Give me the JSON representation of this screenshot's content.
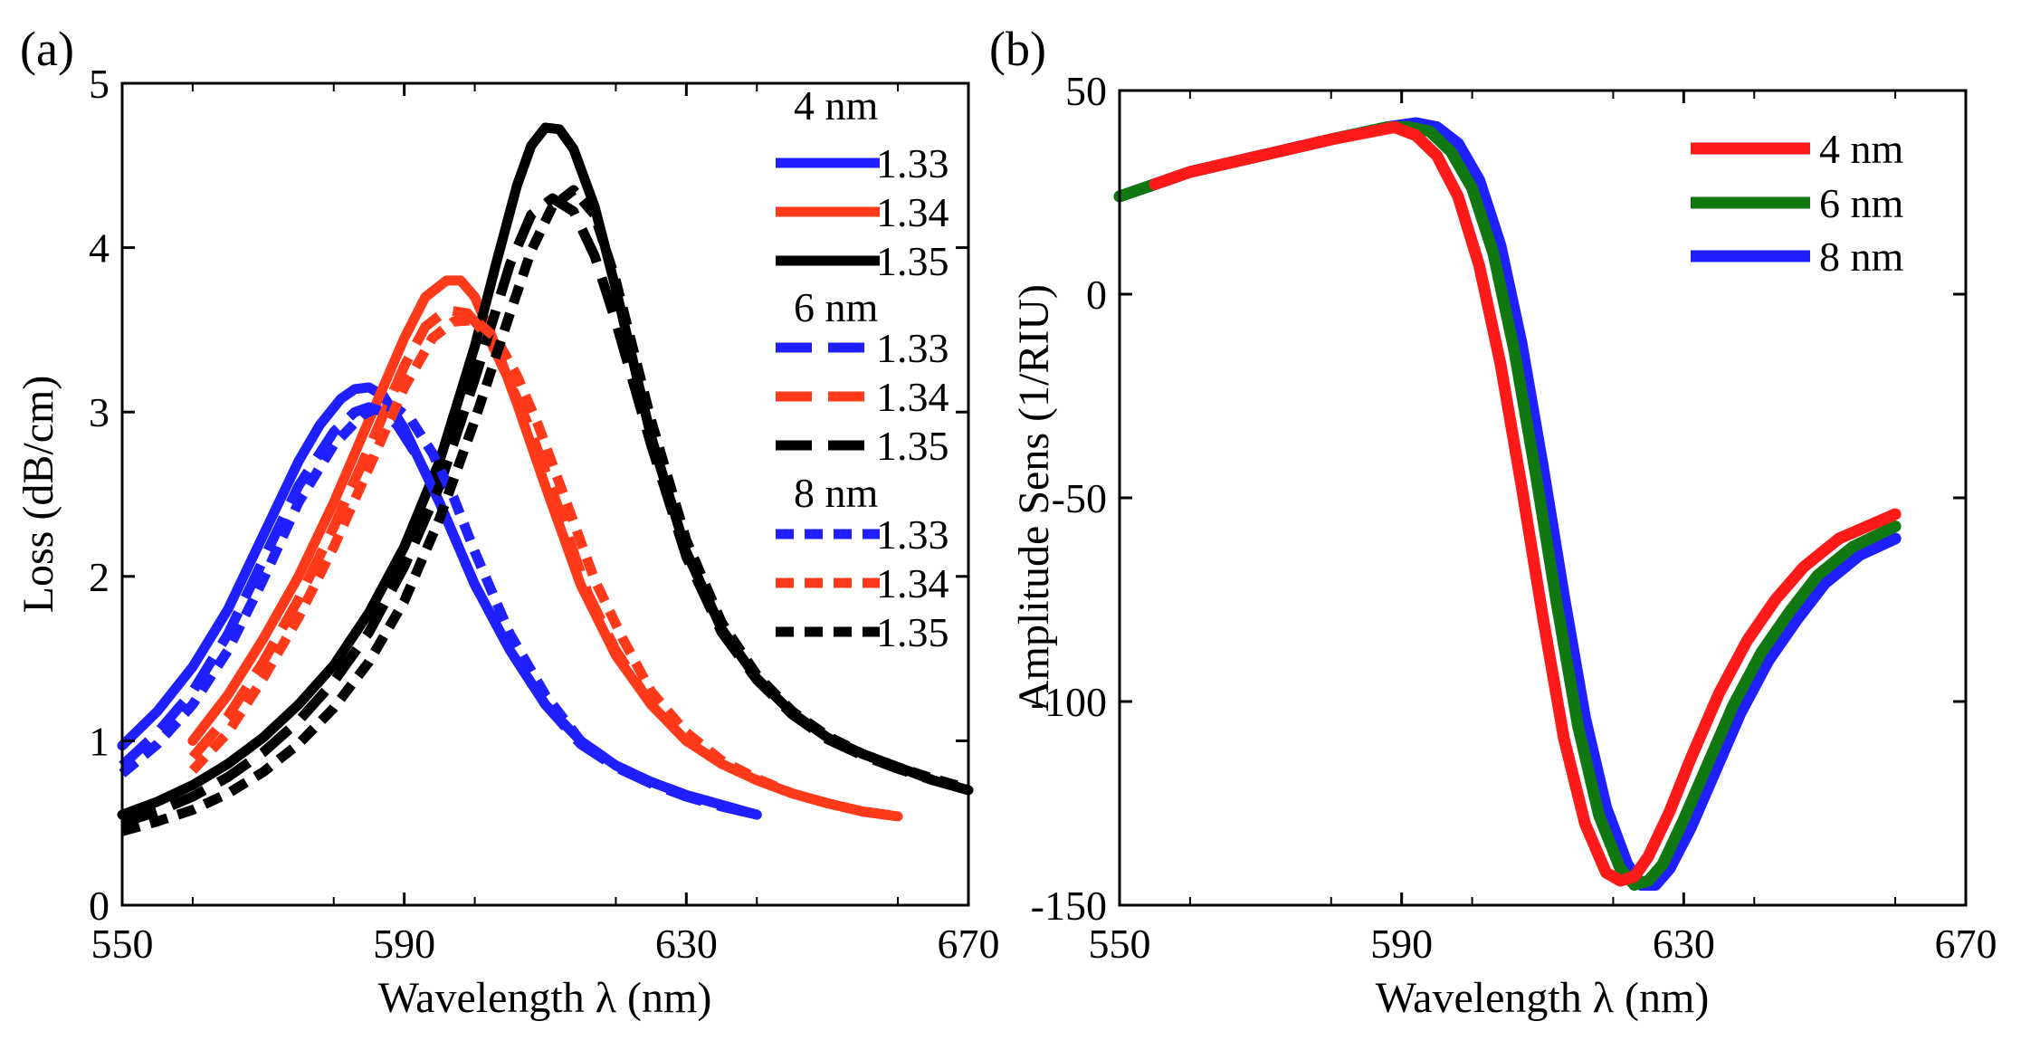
{
  "chart_data": [
    {
      "type": "line",
      "panel_label": "(a)",
      "xlabel": "Wavelength λ (nm)",
      "ylabel": "Loss (dB/cm)",
      "xlim": [
        550,
        670
      ],
      "ylim": [
        0,
        5
      ],
      "xticks": [
        550,
        590,
        630,
        670
      ],
      "yticks": [
        0,
        1,
        2,
        3,
        4,
        5
      ],
      "legend_position": "top-right",
      "legend_groups": [
        {
          "title": "4 nm",
          "style": "solid",
          "entries": [
            "1.33",
            "1.34",
            "1.35"
          ]
        },
        {
          "title": "6 nm",
          "style": "dashed",
          "entries": [
            "1.33",
            "1.34",
            "1.35"
          ]
        },
        {
          "title": "8 nm",
          "style": "dotted",
          "entries": [
            "1.33",
            "1.34",
            "1.35"
          ]
        }
      ],
      "series_colors": {
        "1.33": "#1f1fff",
        "1.34": "#ff3a1a",
        "1.35": "#000000"
      },
      "series": [
        {
          "name": "4 nm 1.33",
          "thickness": "4 nm",
          "index": "1.33",
          "style": "solid",
          "x": [
            550,
            555,
            560,
            565,
            570,
            575,
            578,
            581,
            583,
            585,
            587,
            590,
            595,
            600,
            605,
            610,
            615,
            620,
            625,
            630,
            635,
            640
          ],
          "y": [
            0.97,
            1.18,
            1.45,
            1.8,
            2.25,
            2.7,
            2.92,
            3.08,
            3.14,
            3.15,
            3.1,
            2.9,
            2.45,
            1.95,
            1.55,
            1.22,
            1.0,
            0.85,
            0.75,
            0.67,
            0.61,
            0.55
          ]
        },
        {
          "name": "4 nm 1.34",
          "thickness": "4 nm",
          "index": "1.34",
          "style": "solid",
          "x": [
            560,
            565,
            570,
            575,
            580,
            585,
            590,
            593,
            596,
            598,
            600,
            603,
            606,
            610,
            615,
            620,
            625,
            630,
            635,
            640,
            645,
            650,
            655,
            660
          ],
          "y": [
            1.0,
            1.28,
            1.62,
            2.0,
            2.45,
            2.95,
            3.45,
            3.7,
            3.8,
            3.8,
            3.7,
            3.4,
            3.05,
            2.55,
            1.95,
            1.52,
            1.22,
            1.0,
            0.86,
            0.76,
            0.68,
            0.62,
            0.57,
            0.54
          ]
        },
        {
          "name": "4 nm 1.35",
          "thickness": "4 nm",
          "index": "1.35",
          "style": "solid",
          "x": [
            550,
            555,
            560,
            565,
            570,
            575,
            580,
            585,
            590,
            595,
            600,
            603,
            606,
            608,
            610,
            612,
            614,
            617,
            620,
            625,
            630,
            635,
            640,
            645,
            650,
            655,
            660,
            665,
            670
          ],
          "y": [
            0.55,
            0.63,
            0.73,
            0.86,
            1.02,
            1.22,
            1.46,
            1.78,
            2.18,
            2.7,
            3.4,
            3.9,
            4.38,
            4.62,
            4.73,
            4.72,
            4.6,
            4.25,
            3.75,
            2.85,
            2.15,
            1.68,
            1.38,
            1.17,
            1.02,
            0.92,
            0.84,
            0.76,
            0.7
          ]
        },
        {
          "name": "6 nm 1.33",
          "thickness": "6 nm",
          "index": "1.33",
          "style": "dashed",
          "x": [
            550,
            555,
            560,
            565,
            570,
            575,
            580,
            583,
            585,
            587,
            589,
            592,
            595,
            600,
            605,
            610,
            615,
            620,
            625,
            630,
            635,
            640
          ],
          "y": [
            0.85,
            1.05,
            1.3,
            1.65,
            2.1,
            2.55,
            2.88,
            3.0,
            3.03,
            3.0,
            2.92,
            2.72,
            2.45,
            1.95,
            1.55,
            1.22,
            0.98,
            0.84,
            0.74,
            0.66,
            0.6,
            0.55
          ]
        },
        {
          "name": "6 nm 1.34",
          "thickness": "6 nm",
          "index": "1.34",
          "style": "dashed",
          "x": [
            560,
            565,
            570,
            575,
            580,
            585,
            590,
            593,
            596,
            599,
            602,
            605,
            608,
            612,
            616,
            620,
            625,
            630,
            635,
            640,
            645,
            650,
            655,
            660
          ],
          "y": [
            0.9,
            1.15,
            1.48,
            1.86,
            2.3,
            2.78,
            3.28,
            3.52,
            3.62,
            3.6,
            3.45,
            3.18,
            2.88,
            2.4,
            1.9,
            1.55,
            1.22,
            1.0,
            0.86,
            0.76,
            0.68,
            0.62,
            0.57,
            0.54
          ]
        },
        {
          "name": "6 nm 1.35",
          "thickness": "6 nm",
          "index": "1.35",
          "style": "dashed",
          "x": [
            550,
            555,
            560,
            565,
            570,
            575,
            580,
            585,
            590,
            595,
            600,
            605,
            608,
            611,
            614,
            617,
            620,
            625,
            630,
            635,
            640,
            645,
            650,
            655,
            660,
            665,
            670
          ],
          "y": [
            0.5,
            0.57,
            0.66,
            0.78,
            0.93,
            1.12,
            1.36,
            1.66,
            2.06,
            2.55,
            3.2,
            3.9,
            4.2,
            4.3,
            4.22,
            3.95,
            3.55,
            2.8,
            2.12,
            1.66,
            1.37,
            1.16,
            1.01,
            0.91,
            0.83,
            0.76,
            0.7
          ]
        },
        {
          "name": "8 nm 1.33",
          "thickness": "8 nm",
          "index": "1.33",
          "style": "dotted",
          "x": [
            550,
            555,
            560,
            565,
            570,
            575,
            580,
            584,
            587,
            589,
            591,
            594,
            597,
            600,
            605,
            610,
            615,
            620,
            625,
            630,
            635,
            640
          ],
          "y": [
            0.8,
            0.98,
            1.22,
            1.55,
            1.98,
            2.45,
            2.8,
            2.98,
            3.04,
            3.02,
            2.95,
            2.75,
            2.48,
            2.15,
            1.65,
            1.28,
            1.0,
            0.85,
            0.75,
            0.67,
            0.61,
            0.55
          ]
        },
        {
          "name": "8 nm 1.34",
          "thickness": "8 nm",
          "index": "1.34",
          "style": "dotted",
          "x": [
            560,
            565,
            570,
            575,
            580,
            585,
            590,
            594,
            597,
            600,
            603,
            606,
            609,
            613,
            617,
            621,
            625,
            630,
            635,
            640,
            645,
            650,
            655,
            660
          ],
          "y": [
            0.82,
            1.05,
            1.38,
            1.75,
            2.18,
            2.66,
            3.15,
            3.45,
            3.55,
            3.56,
            3.45,
            3.22,
            2.92,
            2.45,
            1.98,
            1.62,
            1.3,
            1.05,
            0.88,
            0.77,
            0.68,
            0.62,
            0.57,
            0.54
          ]
        },
        {
          "name": "8 nm 1.35",
          "thickness": "8 nm",
          "index": "1.35",
          "style": "dotted",
          "x": [
            550,
            555,
            560,
            565,
            570,
            575,
            580,
            585,
            590,
            595,
            600,
            605,
            608,
            611,
            614,
            617,
            620,
            625,
            630,
            635,
            640,
            645,
            650,
            655,
            660,
            665,
            670
          ],
          "y": [
            0.45,
            0.51,
            0.58,
            0.68,
            0.81,
            0.98,
            1.2,
            1.48,
            1.85,
            2.35,
            2.95,
            3.6,
            3.98,
            4.25,
            4.35,
            4.2,
            3.8,
            2.95,
            2.22,
            1.72,
            1.4,
            1.18,
            1.03,
            0.92,
            0.84,
            0.77,
            0.71
          ]
        }
      ]
    },
    {
      "type": "line",
      "panel_label": "(b)",
      "xlabel": "Wavelength λ (nm)",
      "ylabel": "Amplitude Sens (1/RIU)",
      "xlim": [
        550,
        670
      ],
      "ylim": [
        -150,
        50
      ],
      "xticks": [
        550,
        590,
        630,
        670
      ],
      "yticks": [
        -150,
        -100,
        -50,
        0,
        50
      ],
      "legend_position": "top-right",
      "legend": [
        "4 nm",
        "6 nm",
        "8 nm"
      ],
      "series": [
        {
          "name": "8 nm",
          "color": "#1f1fff",
          "x": [
            550,
            560,
            570,
            580,
            588,
            592,
            595,
            598,
            601,
            604,
            607,
            610,
            613,
            616,
            619,
            622,
            624,
            626,
            628,
            631,
            634,
            638,
            642,
            646,
            650,
            655,
            660
          ],
          "y": [
            24,
            30,
            34,
            38,
            41,
            42,
            41,
            37,
            28,
            12,
            -12,
            -42,
            -74,
            -104,
            -126,
            -140,
            -145,
            -145,
            -141,
            -131,
            -119,
            -103,
            -90,
            -80,
            -71,
            -64,
            -60
          ]
        },
        {
          "name": "6 nm",
          "color": "#117711",
          "x": [
            550,
            560,
            570,
            580,
            588,
            591,
            594,
            597,
            600,
            603,
            606,
            609,
            612,
            615,
            618,
            621,
            623,
            625,
            627,
            630,
            633,
            637,
            641,
            645,
            649,
            654,
            660
          ],
          "y": [
            24,
            30,
            34,
            38,
            41,
            41,
            40,
            35,
            26,
            10,
            -14,
            -44,
            -76,
            -106,
            -128,
            -141,
            -145,
            -144,
            -140,
            -129,
            -117,
            -101,
            -88,
            -78,
            -69,
            -62,
            -57
          ]
        },
        {
          "name": "4 nm",
          "color": "#ff1a1a",
          "x": [
            555,
            560,
            570,
            580,
            586,
            589,
            592,
            595,
            598,
            601,
            604,
            607,
            610,
            613,
            616,
            619,
            621,
            623,
            625,
            628,
            631,
            635,
            639,
            643,
            647,
            652,
            660
          ],
          "y": [
            27,
            30,
            34,
            38,
            40,
            41,
            39,
            34,
            24,
            7,
            -17,
            -47,
            -79,
            -109,
            -130,
            -142,
            -144,
            -143,
            -138,
            -127,
            -114,
            -98,
            -85,
            -75,
            -67,
            -60,
            -54
          ]
        }
      ]
    }
  ]
}
